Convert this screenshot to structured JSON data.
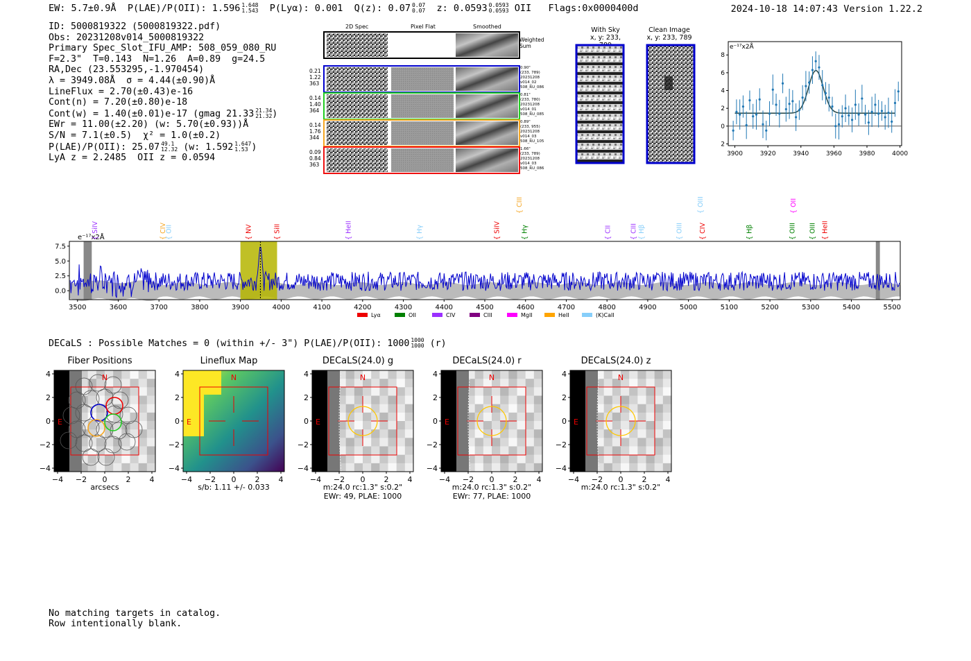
{
  "header": {
    "ew": "EW: 5.7±0.9Å",
    "plae_label": "P(LAE)/P(OII): 1.596",
    "plae_hi": "1.648",
    "plae_lo": "1.543",
    "plya": "P(Lyα): 0.001",
    "q_label": "Q(z): 0.07",
    "q_hi": "0.07",
    "q_lo": "0.07",
    "z_label": "z: 0.0593",
    "z_hi": "0.0593",
    "z_lo": "0.0593",
    "z_line": "OII",
    "flags": "Flags:0x0000400d",
    "datetime": "2024-10-18 14:07:43",
    "version": "Version 1.22.2"
  },
  "info": {
    "id": "ID: 5000819322 (5000819322.pdf)",
    "obs": "Obs: 20231208v014_5000819322",
    "primary": "Primary Spec_Slot_IFU_AMP: 508_059_080_RU",
    "params": "F=2.3\"  T=0.143  N=1.26  A=0.89  g=24.5",
    "radec": "RA,Dec (23.553295,-1.970454)",
    "lambda": "λ = 3949.08Å  σ = 4.44(±0.90)Å",
    "lineflux": "LineFlux = 2.70(±0.43)e-16",
    "contn": "Cont(n) = 7.20(±0.80)e-18",
    "contw": "Cont(w) = 1.40(±0.01)e-17 (gmag 21.33",
    "contw_hi": "21.34",
    "contw_lo": "21.32",
    "ewr": "EWr = 11.00(±2.20) (w: 5.70(±0.93))Å",
    "sn": "S/N = 7.1(±0.5)  χ² = 1.0(±0.2)",
    "plae": "P(LAE)/P(OII): 25.07",
    "plae_hi": "49.1",
    "plae_lo": "12.32",
    "plae_w": "(w: 1.592",
    "plae_w_hi": "1.647",
    "plae_w_lo": "1.53",
    "z": "LyA z = 2.2485  OII z = 0.0594"
  },
  "cutouts": {
    "col_2d": "2D Spec",
    "col_flat": "Pixel Flat",
    "col_smooth": "Smoothed",
    "weighted": "Weighted Sum",
    "rows": [
      {
        "v1": "0.21",
        "v2": "1.22",
        "v3": "363",
        "d1": "0.90\"",
        "d2": "(233, 789)",
        "d3": "20231208",
        "d4": "v014_02",
        "d5": "508_RU_086",
        "color": "#0000cc"
      },
      {
        "v1": "0.14",
        "v2": "1.40",
        "v3": "364",
        "d1": "0.81\"",
        "d2": "(233, 780)",
        "d3": "20231208",
        "d4": "v014_01",
        "d5": "508_RU_085",
        "color": "#22cc22"
      },
      {
        "v1": "0.14",
        "v2": "1.76",
        "v3": "344",
        "d1": "0.89\"",
        "d2": "(233, 955)",
        "d3": "20231208",
        "d4": "v014_03",
        "d5": "508_RU_105",
        "color": "#f5a623"
      },
      {
        "v1": "0.09",
        "v2": "0.84",
        "v3": "363",
        "d1": "1.66\"",
        "d2": "(233, 789)",
        "d3": "20231208",
        "d4": "v014_03",
        "d5": "508_RU_086",
        "color": "#ee1111"
      }
    ]
  },
  "sky": {
    "with_sky": "With Sky",
    "with_sky_xy": "x, y: 233, 789",
    "clean": "Clean Image",
    "clean_xy": "x, y: 233, 789"
  },
  "zoom_plot": {
    "ylabel": "e⁻¹⁷x2Å",
    "xticks": [
      "3900",
      "3920",
      "3940",
      "3960",
      "3980",
      "4000"
    ],
    "yticks": [
      "8",
      "6",
      "4",
      "2",
      "0",
      "−2"
    ],
    "xlim": [
      3896,
      4001
    ],
    "ylim": [
      -2.2,
      9.5
    ],
    "continuum": 1.45,
    "gauss_center": 3949.08,
    "gauss_amp": 4.8,
    "gauss_sigma": 4.44,
    "points": [
      [
        3899,
        -0.5
      ],
      [
        3901,
        1.6
      ],
      [
        3903,
        1.3
      ],
      [
        3905,
        2.2
      ],
      [
        3907,
        0.1
      ],
      [
        3909,
        2.9
      ],
      [
        3911,
        1.1
      ],
      [
        3913,
        1.3
      ],
      [
        3915,
        3.0
      ],
      [
        3917,
        0.2
      ],
      [
        3919,
        -0.5
      ],
      [
        3921,
        1.4
      ],
      [
        3923,
        4.1
      ],
      [
        3925,
        2.4
      ],
      [
        3927,
        1.4
      ],
      [
        3929,
        4.8
      ],
      [
        3931,
        1.9
      ],
      [
        3933,
        2.5
      ],
      [
        3935,
        2.8
      ],
      [
        3937,
        1.0
      ],
      [
        3939,
        1.8
      ],
      [
        3941,
        3.2
      ],
      [
        3943,
        4.5
      ],
      [
        3945,
        4.9
      ],
      [
        3947,
        6.3
      ],
      [
        3949,
        7.3
      ],
      [
        3951,
        6.6
      ],
      [
        3953,
        4.6
      ],
      [
        3955,
        3.7
      ],
      [
        3957,
        3.2
      ],
      [
        3959,
        2.2
      ],
      [
        3961,
        0.0
      ],
      [
        3963,
        0.2
      ],
      [
        3965,
        1.1
      ],
      [
        3967,
        2.0
      ],
      [
        3969,
        1.2
      ],
      [
        3971,
        0.7
      ],
      [
        3973,
        2.4
      ],
      [
        3975,
        1.3
      ],
      [
        3977,
        3.1
      ],
      [
        3979,
        1.3
      ],
      [
        3981,
        0.4
      ],
      [
        3983,
        1.6
      ],
      [
        3985,
        2.4
      ],
      [
        3987,
        1.4
      ],
      [
        3989,
        1.7
      ],
      [
        3991,
        1.0
      ],
      [
        3993,
        1.5
      ],
      [
        3995,
        0.5
      ],
      [
        3997,
        2.6
      ],
      [
        3999,
        3.9
      ]
    ]
  },
  "spectrum": {
    "ylabel": "e⁻¹⁷x2Å",
    "xlim": [
      3480,
      5520
    ],
    "ylim": [
      -1.5,
      8.3
    ],
    "yticks": [
      "7.5",
      "5.0",
      "2.5",
      "0.0"
    ],
    "xticks": [
      "3500",
      "3600",
      "3700",
      "3800",
      "3900",
      "4000",
      "4100",
      "4200",
      "4300",
      "4400",
      "4500",
      "4600",
      "4700",
      "4800",
      "4900",
      "5000",
      "5100",
      "5200",
      "5300",
      "5400",
      "5500"
    ],
    "highlight": [
      3900,
      3990
    ],
    "gray_bands": [
      3515,
      3535,
      5460,
      5470
    ],
    "line_marker": 3949,
    "lines": [
      {
        "label": "SiIV",
        "wave": 3543,
        "color": "#9b30ff",
        "row": 0
      },
      {
        "label": "CIV",
        "wave": 3710,
        "color": "#f5a623",
        "row": 0
      },
      {
        "label": "OII",
        "wave": 3724,
        "color": "#87cefa",
        "row": 0
      },
      {
        "label": "NV",
        "wave": 3920,
        "color": "#ee0000",
        "row": 0
      },
      {
        "label": "SiII",
        "wave": 3990,
        "color": "#ee0000",
        "row": 0
      },
      {
        "label": "HeII",
        "wave": 4165,
        "color": "#9b30ff",
        "row": 0
      },
      {
        "label": "Hγ",
        "wave": 4340,
        "color": "#87cefa",
        "row": 0
      },
      {
        "label": "SiIV",
        "wave": 4530,
        "color": "#ee0000",
        "row": 0
      },
      {
        "label": "CIII",
        "wave": 4585,
        "color": "#f5a623",
        "row": 1
      },
      {
        "label": "Hγ",
        "wave": 4598,
        "color": "#008000",
        "row": 0
      },
      {
        "label": "CII",
        "wave": 4802,
        "color": "#9b30ff",
        "row": 0
      },
      {
        "label": "CIII",
        "wave": 4865,
        "color": "#9b30ff",
        "row": 0
      },
      {
        "label": "Hβ",
        "wave": 4885,
        "color": "#87cefa",
        "row": 0
      },
      {
        "label": "OIII",
        "wave": 4978,
        "color": "#87cefa",
        "row": 0
      },
      {
        "label": "OIII",
        "wave": 5030,
        "color": "#87cefa",
        "row": 1
      },
      {
        "label": "CIV",
        "wave": 5035,
        "color": "#ee0000",
        "row": 0
      },
      {
        "label": "Hβ",
        "wave": 5150,
        "color": "#008000",
        "row": 0
      },
      {
        "label": "OII",
        "wave": 5258,
        "color": "#ff00ff",
        "row": 1
      },
      {
        "label": "OIII",
        "wave": 5255,
        "color": "#008000",
        "row": 0
      },
      {
        "label": "OIII",
        "wave": 5305,
        "color": "#008000",
        "row": 0
      },
      {
        "label": "HeII",
        "wave": 5335,
        "color": "#ee0000",
        "row": 0
      }
    ],
    "legend": [
      {
        "label": "Lyα",
        "color": "#ee0000"
      },
      {
        "label": "OII",
        "color": "#008000"
      },
      {
        "label": "CIV",
        "color": "#9b30ff"
      },
      {
        "label": "CIII",
        "color": "#800080"
      },
      {
        "label": "MgII",
        "color": "#ff00ff"
      },
      {
        "label": "HeII",
        "color": "#ffa500"
      },
      {
        "label": "(K)CaII",
        "color": "#87cefa"
      }
    ]
  },
  "decals_line": {
    "text": "DECaLS : Possible Matches = 0 (within +/- 3\")  P(LAE)/P(OII): 1000",
    "hi": "1000",
    "lo": "1000",
    "suffix": "(r)"
  },
  "panels": [
    {
      "title": "Fiber Positions",
      "cap1": "arcsecs",
      "cap2": ""
    },
    {
      "title": "Lineflux Map",
      "cap1": "s/b: 1.11 +/- 0.033",
      "cap2": ""
    },
    {
      "title": "DECaLS(24.0) g",
      "cap1": "m:24.0 rc:1.3\"  s:0.2\"",
      "cap2": "EWr: 49, PLAE: 1000"
    },
    {
      "title": "DECaLS(24.0) r",
      "cap1": "m:24.0 rc:1.3\"  s:0.2\"",
      "cap2": "EWr: 77, PLAE: 1000"
    },
    {
      "title": "DECaLS(24.0) z",
      "cap1": "m:24.0 rc:1.3\"  s:0.2\"",
      "cap2": ""
    }
  ],
  "panel_axis": {
    "ticks": [
      "4",
      "2",
      "0",
      "−2",
      "−4"
    ],
    "xticks": [
      "−4",
      "−2",
      "0",
      "2",
      "4"
    ],
    "n_label": "N",
    "e_label": "E"
  },
  "footer": {
    "line1": "No matching targets in catalog.",
    "line2": "Row intentionally blank."
  }
}
